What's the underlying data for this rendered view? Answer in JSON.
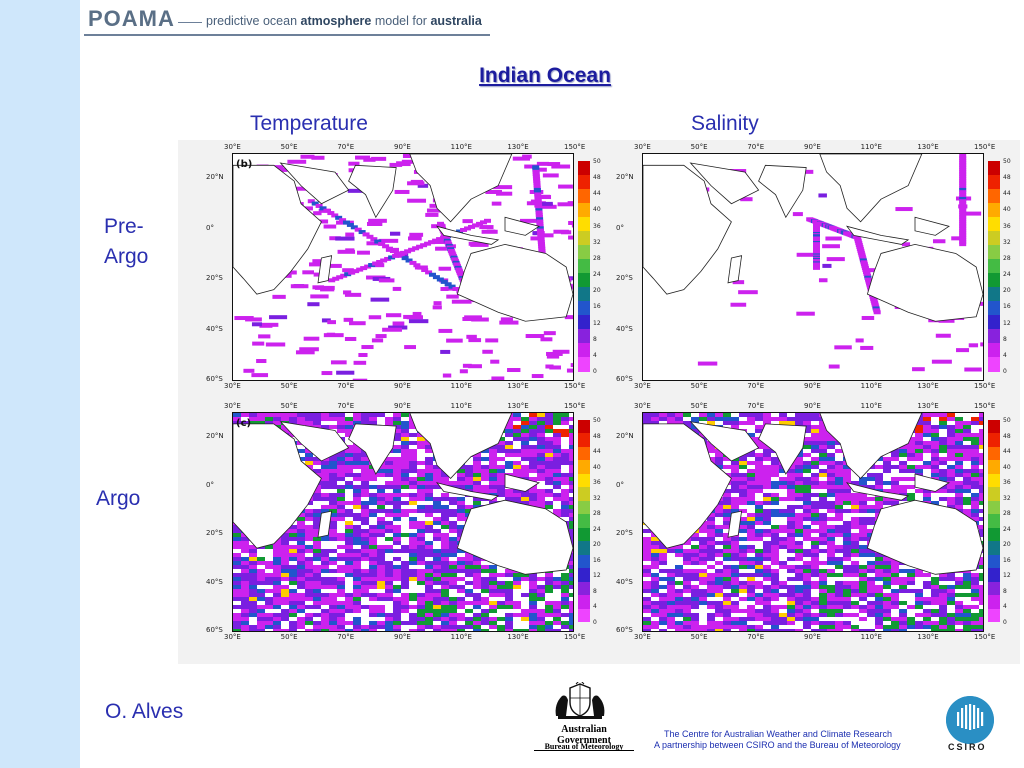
{
  "header": {
    "logo_text": "POAMA",
    "tagline_1": "predictive ocean ",
    "tagline_2": "atmosphere",
    "tagline_3": " model for ",
    "tagline_4": "australia"
  },
  "slide": {
    "title": "Indian Ocean",
    "column_headings": [
      "Temperature",
      "Salinity"
    ],
    "row_labels": {
      "pre_argo_1": "Pre-",
      "pre_argo_2": "Argo",
      "argo": "Argo"
    },
    "author": "O. Alves"
  },
  "figure": {
    "panel_tags": [
      "(b)",
      "(c)"
    ],
    "lon_ticks": [
      "30°E",
      "50°E",
      "70°E",
      "90°E",
      "110°E",
      "130°E",
      "150°E"
    ],
    "lat_ticks": [
      "20°N",
      "0°",
      "20°S",
      "40°S",
      "60°S"
    ],
    "colorbar_ticks": [
      "50",
      "48",
      "44",
      "40",
      "36",
      "32",
      "28",
      "24",
      "20",
      "16",
      "12",
      "8",
      "4",
      "0"
    ],
    "colorbar_colors": [
      "#cc0000",
      "#ee2200",
      "#ff6600",
      "#ffaa00",
      "#ffdd00",
      "#cccc22",
      "#88cc44",
      "#44bb44",
      "#119933",
      "#117788",
      "#2255cc",
      "#3322cc",
      "#8822dd",
      "#cc22ee",
      "#ee44ff"
    ],
    "obs_colors": {
      "sparse": "#cc22ee",
      "medium": "#7a1fe0",
      "dense": "#2255cc",
      "denser": "#119933",
      "hot": "#ffcc00",
      "hotter": "#ee2200"
    }
  },
  "footer": {
    "gov_name": "Australian Government",
    "gov_dept": "Bureau of Meteorology",
    "centre_line1": "The Centre for Australian Weather and Climate Research",
    "centre_line2": "A partnership between CSIRO and the Bureau of Meteorology",
    "csiro_text": "CSIRO"
  }
}
